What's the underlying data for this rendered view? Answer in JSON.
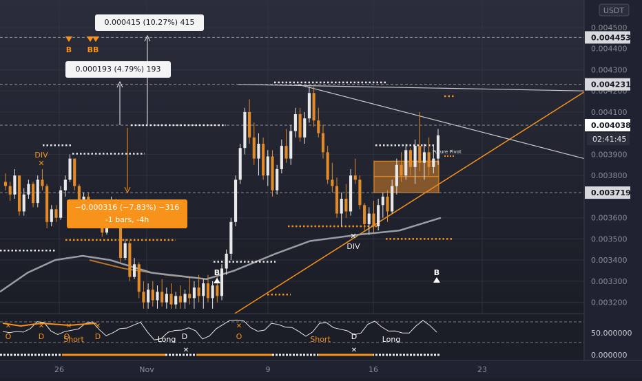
{
  "chart_data": {
    "type": "candlestick",
    "currency_badge": "USDT",
    "price_axis": {
      "ticks": [
        "0.004500",
        "0.004400",
        "0.004300",
        "0.004200",
        "0.004100",
        "0.003900",
        "0.003800",
        "0.003600",
        "0.003500",
        "0.003400",
        "0.003300",
        "0.003200"
      ],
      "tick_values": [
        0.0045,
        0.0044,
        0.0043,
        0.0042,
        0.0041,
        0.0039,
        0.0038,
        0.0036,
        0.0035,
        0.0034,
        0.0033,
        0.0032
      ],
      "ylim": [
        0.00315,
        0.00463
      ]
    },
    "price_labels": [
      {
        "text": "0.004453",
        "value": 0.004453
      },
      {
        "text": "0.004231",
        "value": 0.004231
      },
      {
        "text": "0.004038",
        "value": 0.004038,
        "highlight": true
      },
      {
        "text": "0.003719",
        "value": 0.003719
      }
    ],
    "countdown": "02:41:45",
    "indicator_axis": {
      "ticks": [
        "50.000000",
        "0.000000"
      ]
    },
    "time_axis": {
      "ticks": [
        "26",
        "Nov",
        "9",
        "16",
        "23"
      ]
    },
    "measurements": [
      {
        "line1": "0.000415 (10.27%) 415"
      },
      {
        "line1": "0.000193 (4.79%) 193"
      },
      {
        "line1": "−0.000316 (−7.83%) −316",
        "line2": "-1 bars, -4h"
      }
    ],
    "annotations": {
      "top_signals": [
        "B",
        "BB"
      ],
      "div_left": "DIV",
      "div_bottom": "DIV",
      "future_pivot": "Future Pivot",
      "buy_marker_left": "B",
      "buy_marker_right": "B"
    },
    "indicator_labels": [
      {
        "text": "O",
        "x": 12
      },
      {
        "text": "D",
        "x": 60
      },
      {
        "text": "O",
        "x": 97
      },
      {
        "text": "D",
        "x": 142
      },
      {
        "text": "Short",
        "x": 107
      },
      {
        "text": "Long",
        "x": 242
      },
      {
        "text": "D",
        "x": 268
      },
      {
        "text": "O",
        "x": 347
      },
      {
        "text": "Short",
        "x": 465
      },
      {
        "text": "D",
        "x": 514
      },
      {
        "text": "Long",
        "x": 568
      }
    ],
    "colors": {
      "up": "#e9e9ea",
      "down": "#e08a2a",
      "accent": "#f7931a",
      "background": "#1c1f2a"
    },
    "candles": [
      [
        0.00377,
        0.00381,
        0.00373,
        0.00375
      ],
      [
        0.00375,
        0.00377,
        0.00368,
        0.00371
      ],
      [
        0.00371,
        0.00383,
        0.00369,
        0.0038
      ],
      [
        0.0038,
        0.0038,
        0.00361,
        0.00363
      ],
      [
        0.00363,
        0.00374,
        0.00361,
        0.00371
      ],
      [
        0.00371,
        0.00378,
        0.00369,
        0.00376
      ],
      [
        0.00376,
        0.00377,
        0.00365,
        0.00367
      ],
      [
        0.00367,
        0.0038,
        0.00365,
        0.00378
      ],
      [
        0.00378,
        0.00383,
        0.00373,
        0.00375
      ],
      [
        0.00375,
        0.00376,
        0.00355,
        0.00358
      ],
      [
        0.00358,
        0.00366,
        0.00356,
        0.00364
      ],
      [
        0.00364,
        0.00366,
        0.00358,
        0.0036
      ],
      [
        0.0036,
        0.00375,
        0.00359,
        0.00373
      ],
      [
        0.00373,
        0.0038,
        0.0037,
        0.00378
      ],
      [
        0.00378,
        0.0039,
        0.00377,
        0.00388
      ],
      [
        0.00388,
        0.00388,
        0.00373,
        0.00375
      ],
      [
        0.00375,
        0.00376,
        0.00361,
        0.00363
      ],
      [
        0.00363,
        0.00372,
        0.00362,
        0.0037
      ],
      [
        0.0037,
        0.00372,
        0.00363,
        0.00366
      ],
      [
        0.00366,
        0.00367,
        0.00355,
        0.00357
      ],
      [
        0.00357,
        0.00366,
        0.00355,
        0.00364
      ],
      [
        0.00364,
        0.00366,
        0.00351,
        0.00353
      ],
      [
        0.00353,
        0.00362,
        0.00352,
        0.0036
      ],
      [
        0.0036,
        0.0037,
        0.00358,
        0.00367
      ],
      [
        0.00367,
        0.00369,
        0.00355,
        0.00357
      ],
      [
        0.00357,
        0.00358,
        0.00339,
        0.00341
      ],
      [
        0.00341,
        0.0035,
        0.0034,
        0.00348
      ],
      [
        0.00348,
        0.00349,
        0.0033,
        0.00332
      ],
      [
        0.00332,
        0.00341,
        0.00331,
        0.00338
      ],
      [
        0.00338,
        0.00339,
        0.00322,
        0.00325
      ],
      [
        0.00325,
        0.0033,
        0.00317,
        0.0032
      ],
      [
        0.0032,
        0.00329,
        0.00317,
        0.00326
      ],
      [
        0.00326,
        0.0033,
        0.00318,
        0.00321
      ],
      [
        0.00321,
        0.00328,
        0.00317,
        0.00325
      ],
      [
        0.00325,
        0.00331,
        0.00318,
        0.0032
      ],
      [
        0.0032,
        0.00327,
        0.00317,
        0.00324
      ],
      [
        0.00324,
        0.00329,
        0.00317,
        0.00319
      ],
      [
        0.00319,
        0.00325,
        0.00317,
        0.00323
      ],
      [
        0.00323,
        0.00328,
        0.00317,
        0.0032
      ],
      [
        0.0032,
        0.00326,
        0.00317,
        0.00324
      ],
      [
        0.00324,
        0.00332,
        0.00319,
        0.00322
      ],
      [
        0.00322,
        0.0033,
        0.00317,
        0.00327
      ],
      [
        0.00327,
        0.00333,
        0.0032,
        0.00323
      ],
      [
        0.00323,
        0.00331,
        0.00317,
        0.00329
      ],
      [
        0.00329,
        0.00333,
        0.0032,
        0.00322
      ],
      [
        0.00322,
        0.0033,
        0.00317,
        0.00328
      ],
      [
        0.00328,
        0.00332,
        0.0032,
        0.00323
      ],
      [
        0.00323,
        0.00338,
        0.00321,
        0.00336
      ],
      [
        0.00336,
        0.00345,
        0.00333,
        0.00343
      ],
      [
        0.00343,
        0.0036,
        0.0034,
        0.00358
      ],
      [
        0.00358,
        0.0038,
        0.00356,
        0.00378
      ],
      [
        0.00378,
        0.00395,
        0.00376,
        0.00393
      ],
      [
        0.00393,
        0.00412,
        0.0039,
        0.0041
      ],
      [
        0.0041,
        0.00416,
        0.00395,
        0.00398
      ],
      [
        0.00398,
        0.00405,
        0.00385,
        0.00388
      ],
      [
        0.00388,
        0.004,
        0.0038,
        0.00395
      ],
      [
        0.00395,
        0.00398,
        0.00378,
        0.0038
      ],
      [
        0.0038,
        0.00392,
        0.00375,
        0.00389
      ],
      [
        0.00389,
        0.00392,
        0.0037,
        0.00373
      ],
      [
        0.00373,
        0.00385,
        0.00371,
        0.00383
      ],
      [
        0.00383,
        0.00397,
        0.00381,
        0.00394
      ],
      [
        0.00394,
        0.00402,
        0.00386,
        0.00388
      ],
      [
        0.00388,
        0.00404,
        0.00385,
        0.00401
      ],
      [
        0.00401,
        0.00412,
        0.00398,
        0.00409
      ],
      [
        0.00409,
        0.00412,
        0.00396,
        0.00398
      ],
      [
        0.00398,
        0.0041,
        0.00395,
        0.00407
      ],
      [
        0.00407,
        0.00422,
        0.00405,
        0.00419
      ],
      [
        0.00419,
        0.00422,
        0.00403,
        0.00406
      ],
      [
        0.00406,
        0.00412,
        0.00398,
        0.004
      ],
      [
        0.004,
        0.00404,
        0.00388,
        0.00391
      ],
      [
        0.00391,
        0.00394,
        0.00376,
        0.00378
      ],
      [
        0.00378,
        0.00386,
        0.00372,
        0.00375
      ],
      [
        0.00375,
        0.00379,
        0.0036,
        0.00362
      ],
      [
        0.00362,
        0.00372,
        0.00356,
        0.00369
      ],
      [
        0.00369,
        0.00376,
        0.0036,
        0.00363
      ],
      [
        0.00363,
        0.00383,
        0.00361,
        0.0038
      ],
      [
        0.0038,
        0.00388,
        0.00376,
        0.00378
      ],
      [
        0.00378,
        0.0038,
        0.00364,
        0.00366
      ],
      [
        0.00366,
        0.00367,
        0.00354,
        0.00357
      ],
      [
        0.00357,
        0.00365,
        0.00352,
        0.00362
      ],
      [
        0.00362,
        0.00368,
        0.00353,
        0.00356
      ],
      [
        0.00356,
        0.00369,
        0.00354,
        0.00366
      ],
      [
        0.00366,
        0.00372,
        0.0036,
        0.0037
      ],
      [
        0.0037,
        0.00373,
        0.00358,
        0.00363
      ],
      [
        0.00363,
        0.00378,
        0.00362,
        0.00375
      ],
      [
        0.00375,
        0.00388,
        0.00371,
        0.00385
      ],
      [
        0.00385,
        0.00391,
        0.00377,
        0.0038
      ],
      [
        0.0038,
        0.00395,
        0.00378,
        0.00392
      ],
      [
        0.00392,
        0.00393,
        0.0038,
        0.00384
      ],
      [
        0.00384,
        0.00397,
        0.00376,
        0.00394
      ],
      [
        0.00394,
        0.0041,
        0.00382,
        0.00386
      ],
      [
        0.00386,
        0.00395,
        0.00378,
        0.00391
      ],
      [
        0.00391,
        0.00398,
        0.0038,
        0.00384
      ],
      [
        0.00384,
        0.00394,
        0.00381,
        0.00388
      ],
      [
        0.00388,
        0.00402,
        0.00385,
        0.00399
      ]
    ]
  }
}
